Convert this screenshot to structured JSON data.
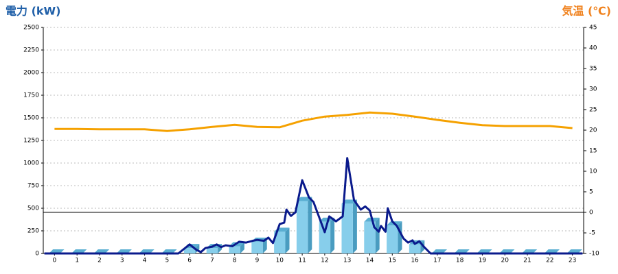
{
  "chart_data": {
    "type": "bar",
    "title": "電力 (kW)",
    "title_color": "#1f5fa8",
    "y2_title": "気温 (℃)",
    "y2_title_color": "#f0821e",
    "categories": [
      "0",
      "1",
      "2",
      "3",
      "4",
      "5",
      "6",
      "7",
      "8",
      "9",
      "10",
      "11",
      "12",
      "13",
      "14",
      "15",
      "16",
      "17",
      "18",
      "19",
      "20",
      "21",
      "22",
      "23"
    ],
    "ylim": [
      0,
      2500
    ],
    "yticks": [
      0,
      250,
      500,
      750,
      1000,
      1250,
      1500,
      1750,
      2000,
      2250,
      2500
    ],
    "y2lim": [
      -10,
      45
    ],
    "y2ticks": [
      -10,
      -5,
      0,
      5,
      10,
      15,
      20,
      25,
      30,
      35,
      40,
      45
    ],
    "grid": true,
    "series": [
      {
        "type": "bar",
        "color": "#87ceeb",
        "values": [
          0,
          0,
          0,
          0,
          0,
          0,
          60,
          60,
          80,
          130,
          240,
          580,
          350,
          550,
          350,
          310,
          100,
          0,
          0,
          0,
          0,
          0,
          0,
          0
        ]
      },
      {
        "type": "line",
        "color": "#0a1a8c",
        "x": [
          -0.45,
          5.5,
          6.0,
          6.3,
          6.5,
          6.7,
          7.0,
          7.2,
          7.4,
          7.6,
          7.9,
          8.2,
          8.5,
          8.8,
          9.0,
          9.3,
          9.5,
          9.7,
          10.0,
          10.2,
          10.3,
          10.5,
          10.7,
          11.0,
          11.3,
          11.5,
          12.0,
          12.2,
          12.5,
          12.8,
          13.0,
          13.3,
          13.6,
          13.8,
          14.0,
          14.2,
          14.4,
          14.5,
          14.7,
          14.8,
          15.0,
          15.2,
          15.5,
          15.7,
          15.9,
          16.0,
          16.2,
          16.4,
          16.7,
          23.45
        ],
        "values": [
          0,
          0,
          100,
          40,
          15,
          60,
          75,
          100,
          70,
          90,
          80,
          130,
          120,
          140,
          150,
          140,
          175,
          115,
          325,
          340,
          485,
          415,
          455,
          810,
          620,
          570,
          235,
          410,
          355,
          410,
          1055,
          590,
          485,
          520,
          475,
          290,
          240,
          305,
          240,
          500,
          355,
          305,
          165,
          120,
          145,
          105,
          135,
          75,
          0,
          0
        ]
      },
      {
        "type": "line",
        "axis": "y2",
        "color": "#f5a100",
        "values": [
          20.3,
          20.3,
          20.2,
          20.2,
          20.2,
          19.8,
          20.2,
          20.8,
          21.3,
          20.8,
          20.7,
          22.3,
          23.3,
          23.7,
          24.3,
          24.0,
          23.3,
          22.5,
          21.8,
          21.2,
          21.0,
          21.0,
          21.0,
          20.5
        ]
      }
    ]
  }
}
